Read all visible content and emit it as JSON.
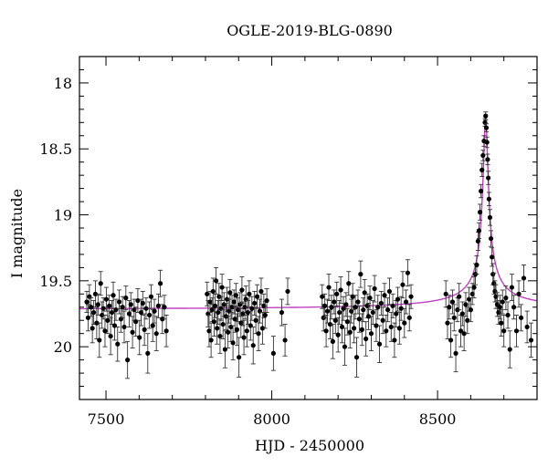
{
  "chart_data": {
    "type": "scatter",
    "title": "OGLE-2019-BLG-0890",
    "xlabel": "HJD - 2450000",
    "ylabel": "I magnitude",
    "xlim": [
      7420,
      8800
    ],
    "ylim": [
      20.4,
      17.8
    ],
    "y_inverted": true,
    "xticks": [
      7500,
      8000,
      8500
    ],
    "yticks": [
      18,
      18.5,
      19,
      19.5,
      20
    ],
    "ytick_labels": [
      "18",
      "18.5",
      "19",
      "19.5",
      "20"
    ],
    "grid": false,
    "series": [
      {
        "kind": "points_with_errorbars",
        "color": "#000000",
        "points": [
          [
            7442,
            19.66,
            0.08
          ],
          [
            7446,
            19.78,
            0.1
          ],
          [
            7450,
            19.62,
            0.09
          ],
          [
            7455,
            19.7,
            0.07
          ],
          [
            7459,
            19.86,
            0.11
          ],
          [
            7463,
            19.74,
            0.09
          ],
          [
            7468,
            19.6,
            0.1
          ],
          [
            7472,
            19.82,
            0.12
          ],
          [
            7476,
            19.68,
            0.08
          ],
          [
            7480,
            19.95,
            0.13
          ],
          [
            7484,
            19.52,
            0.09
          ],
          [
            7488,
            19.76,
            0.1
          ],
          [
            7492,
            19.71,
            0.08
          ],
          [
            7497,
            19.88,
            0.12
          ],
          [
            7501,
            19.64,
            0.09
          ],
          [
            7505,
            19.8,
            0.1
          ],
          [
            7510,
            19.69,
            0.08
          ],
          [
            7514,
            19.92,
            0.14
          ],
          [
            7518,
            19.74,
            0.09
          ],
          [
            7522,
            19.61,
            0.1
          ],
          [
            7526,
            19.84,
            0.11
          ],
          [
            7530,
            19.72,
            0.08
          ],
          [
            7535,
            19.98,
            0.13
          ],
          [
            7540,
            19.66,
            0.09
          ],
          [
            7545,
            19.79,
            0.1
          ],
          [
            7550,
            19.7,
            0.08
          ],
          [
            7555,
            19.85,
            0.12
          ],
          [
            7560,
            19.63,
            0.09
          ],
          [
            7565,
            20.1,
            0.14
          ],
          [
            7570,
            19.75,
            0.1
          ],
          [
            7575,
            19.68,
            0.09
          ],
          [
            7580,
            19.89,
            0.12
          ],
          [
            7585,
            19.72,
            0.08
          ],
          [
            7590,
            19.81,
            0.11
          ],
          [
            7596,
            19.65,
            0.09
          ],
          [
            7601,
            19.93,
            0.13
          ],
          [
            7606,
            19.74,
            0.1
          ],
          [
            7611,
            19.67,
            0.09
          ],
          [
            7616,
            19.87,
            0.12
          ],
          [
            7621,
            19.71,
            0.08
          ],
          [
            7626,
            20.05,
            0.15
          ],
          [
            7631,
            19.76,
            0.1
          ],
          [
            7636,
            19.62,
            0.09
          ],
          [
            7641,
            19.84,
            0.12
          ],
          [
            7646,
            19.73,
            0.09
          ],
          [
            7652,
            19.9,
            0.13
          ],
          [
            7658,
            19.69,
            0.09
          ],
          [
            7664,
            19.52,
            0.1
          ],
          [
            7670,
            19.79,
            0.11
          ],
          [
            7676,
            19.7,
            0.09
          ],
          [
            7682,
            19.88,
            0.12
          ],
          [
            7805,
            19.6,
            0.09
          ],
          [
            7808,
            19.75,
            0.1
          ],
          [
            7811,
            19.88,
            0.12
          ],
          [
            7814,
            19.66,
            0.08
          ],
          [
            7817,
            19.95,
            0.13
          ],
          [
            7820,
            19.72,
            0.09
          ],
          [
            7823,
            19.58,
            0.1
          ],
          [
            7826,
            19.81,
            0.11
          ],
          [
            7829,
            19.69,
            0.09
          ],
          [
            7832,
            19.5,
            0.1
          ],
          [
            7835,
            19.86,
            0.12
          ],
          [
            7838,
            19.74,
            0.09
          ],
          [
            7841,
            19.62,
            0.1
          ],
          [
            7844,
            19.92,
            0.13
          ],
          [
            7847,
            19.71,
            0.09
          ],
          [
            7850,
            19.55,
            0.1
          ],
          [
            7853,
            19.83,
            0.11
          ],
          [
            7856,
            19.68,
            0.09
          ],
          [
            7859,
            20.02,
            0.14
          ],
          [
            7862,
            19.77,
            0.1
          ],
          [
            7865,
            19.64,
            0.09
          ],
          [
            7868,
            19.89,
            0.12
          ],
          [
            7871,
            19.73,
            0.09
          ],
          [
            7874,
            19.59,
            0.1
          ],
          [
            7877,
            19.85,
            0.11
          ],
          [
            7880,
            19.7,
            0.09
          ],
          [
            7883,
            19.97,
            0.13
          ],
          [
            7886,
            19.66,
            0.09
          ],
          [
            7889,
            19.79,
            0.1
          ],
          [
            7892,
            19.61,
            0.09
          ],
          [
            7895,
            19.87,
            0.12
          ],
          [
            7898,
            19.72,
            0.09
          ],
          [
            7901,
            20.08,
            0.15
          ],
          [
            7904,
            19.68,
            0.09
          ],
          [
            7907,
            19.82,
            0.11
          ],
          [
            7910,
            19.57,
            0.1
          ],
          [
            7913,
            19.75,
            0.09
          ],
          [
            7916,
            19.93,
            0.13
          ],
          [
            7919,
            19.7,
            0.09
          ],
          [
            7922,
            19.64,
            0.1
          ],
          [
            7925,
            19.88,
            0.12
          ],
          [
            7928,
            19.74,
            0.09
          ],
          [
            7932,
            19.6,
            0.1
          ],
          [
            7936,
            19.84,
            0.11
          ],
          [
            7940,
            19.71,
            0.09
          ],
          [
            7944,
            19.99,
            0.14
          ],
          [
            7948,
            19.67,
            0.09
          ],
          [
            7952,
            19.8,
            0.1
          ],
          [
            7956,
            19.62,
            0.09
          ],
          [
            7960,
            19.9,
            0.13
          ],
          [
            7964,
            19.73,
            0.09
          ],
          [
            7968,
            19.58,
            0.1
          ],
          [
            7972,
            19.86,
            0.12
          ],
          [
            7976,
            19.69,
            0.09
          ],
          [
            7980,
            19.76,
            0.1
          ],
          [
            7985,
            19.65,
            0.09
          ],
          [
            8005,
            20.05,
            0.13
          ],
          [
            8030,
            19.74,
            0.1
          ],
          [
            8040,
            19.95,
            0.12
          ],
          [
            8048,
            19.58,
            0.1
          ],
          [
            8152,
            19.62,
            0.09
          ],
          [
            8156,
            19.78,
            0.1
          ],
          [
            8160,
            19.69,
            0.09
          ],
          [
            8164,
            19.88,
            0.12
          ],
          [
            8168,
            19.73,
            0.09
          ],
          [
            8172,
            19.55,
            0.1
          ],
          [
            8176,
            19.83,
            0.11
          ],
          [
            8180,
            19.7,
            0.09
          ],
          [
            8184,
            19.96,
            0.13
          ],
          [
            8188,
            19.66,
            0.09
          ],
          [
            8192,
            19.8,
            0.1
          ],
          [
            8196,
            19.6,
            0.09
          ],
          [
            8200,
            19.91,
            0.13
          ],
          [
            8204,
            19.74,
            0.09
          ],
          [
            8208,
            19.57,
            0.1
          ],
          [
            8212,
            19.85,
            0.12
          ],
          [
            8216,
            19.71,
            0.09
          ],
          [
            8220,
            20.0,
            0.14
          ],
          [
            8224,
            19.68,
            0.09
          ],
          [
            8228,
            19.81,
            0.1
          ],
          [
            8232,
            19.52,
            0.09
          ],
          [
            8236,
            19.89,
            0.12
          ],
          [
            8240,
            19.73,
            0.09
          ],
          [
            8244,
            19.62,
            0.1
          ],
          [
            8248,
            19.86,
            0.11
          ],
          [
            8252,
            19.7,
            0.09
          ],
          [
            8256,
            20.08,
            0.15
          ],
          [
            8260,
            19.66,
            0.09
          ],
          [
            8264,
            19.79,
            0.1
          ],
          [
            8268,
            19.45,
            0.1
          ],
          [
            8272,
            19.87,
            0.12
          ],
          [
            8276,
            19.72,
            0.09
          ],
          [
            8280,
            19.59,
            0.1
          ],
          [
            8284,
            19.94,
            0.13
          ],
          [
            8288,
            19.69,
            0.09
          ],
          [
            8292,
            19.77,
            0.1
          ],
          [
            8296,
            19.63,
            0.09
          ],
          [
            8300,
            19.9,
            0.13
          ],
          [
            8305,
            19.74,
            0.09
          ],
          [
            8310,
            19.56,
            0.1
          ],
          [
            8315,
            19.84,
            0.12
          ],
          [
            8320,
            19.7,
            0.09
          ],
          [
            8325,
            19.98,
            0.14
          ],
          [
            8330,
            19.67,
            0.09
          ],
          [
            8335,
            19.8,
            0.1
          ],
          [
            8340,
            19.61,
            0.09
          ],
          [
            8345,
            19.88,
            0.12
          ],
          [
            8350,
            19.72,
            0.09
          ],
          [
            8355,
            19.58,
            0.1
          ],
          [
            8360,
            19.85,
            0.11
          ],
          [
            8365,
            19.69,
            0.09
          ],
          [
            8370,
            19.95,
            0.13
          ],
          [
            8375,
            19.75,
            0.1
          ],
          [
            8380,
            19.64,
            0.09
          ],
          [
            8385,
            19.86,
            0.12
          ],
          [
            8390,
            19.71,
            0.09
          ],
          [
            8395,
            19.53,
            0.1
          ],
          [
            8400,
            19.82,
            0.11
          ],
          [
            8405,
            19.66,
            0.09
          ],
          [
            8410,
            19.44,
            0.1
          ],
          [
            8415,
            19.78,
            0.1
          ],
          [
            8420,
            19.62,
            0.09
          ],
          [
            8525,
            19.6,
            0.1
          ],
          [
            8530,
            19.82,
            0.12
          ],
          [
            8535,
            19.7,
            0.09
          ],
          [
            8540,
            19.95,
            0.13
          ],
          [
            8545,
            19.66,
            0.09
          ],
          [
            8550,
            19.78,
            0.1
          ],
          [
            8555,
            20.05,
            0.14
          ],
          [
            8560,
            19.72,
            0.09
          ],
          [
            8565,
            19.62,
            0.1
          ],
          [
            8570,
            19.88,
            0.12
          ],
          [
            8575,
            19.75,
            0.09
          ],
          [
            8580,
            19.9,
            0.13
          ],
          [
            8585,
            19.68,
            0.09
          ],
          [
            8590,
            19.8,
            0.1
          ],
          [
            8595,
            19.64,
            0.09
          ],
          [
            8600,
            19.72,
            0.09
          ],
          [
            8605,
            19.6,
            0.08
          ],
          [
            8610,
            19.55,
            0.08
          ],
          [
            8614,
            19.45,
            0.08
          ],
          [
            8618,
            19.38,
            0.07
          ],
          [
            8622,
            19.2,
            0.07
          ],
          [
            8625,
            19.12,
            0.06
          ],
          [
            8628,
            18.98,
            0.06
          ],
          [
            8631,
            18.82,
            0.05
          ],
          [
            8634,
            18.66,
            0.05
          ],
          [
            8637,
            18.55,
            0.04
          ],
          [
            8640,
            18.44,
            0.04
          ],
          [
            8643,
            18.3,
            0.03
          ],
          [
            8645,
            18.25,
            0.03
          ],
          [
            8647,
            18.34,
            0.03
          ],
          [
            8649,
            18.45,
            0.04
          ],
          [
            8651,
            18.58,
            0.04
          ],
          [
            8653,
            18.72,
            0.05
          ],
          [
            8655,
            18.88,
            0.05
          ],
          [
            8658,
            19.02,
            0.06
          ],
          [
            8661,
            19.18,
            0.06
          ],
          [
            8664,
            19.32,
            0.07
          ],
          [
            8667,
            19.45,
            0.08
          ],
          [
            8670,
            19.52,
            0.08
          ],
          [
            8673,
            19.58,
            0.08
          ],
          [
            8676,
            19.62,
            0.09
          ],
          [
            8680,
            19.68,
            0.09
          ],
          [
            8684,
            19.74,
            0.09
          ],
          [
            8688,
            19.7,
            0.09
          ],
          [
            8692,
            19.82,
            0.1
          ],
          [
            8696,
            19.66,
            0.09
          ],
          [
            8700,
            19.88,
            0.12
          ],
          [
            8706,
            19.63,
            0.09
          ],
          [
            8712,
            19.76,
            0.1
          ],
          [
            8718,
            20.02,
            0.14
          ],
          [
            8724,
            19.55,
            0.1
          ],
          [
            8730,
            19.7,
            0.09
          ],
          [
            8738,
            19.88,
            0.12
          ],
          [
            8745,
            19.6,
            0.1
          ],
          [
            8752,
            19.78,
            0.1
          ],
          [
            8760,
            19.48,
            0.1
          ],
          [
            8770,
            19.85,
            0.12
          ],
          [
            8782,
            19.95,
            0.13
          ]
        ]
      },
      {
        "kind": "model_curve",
        "color": "#c040c0",
        "baseline": 19.72,
        "peak_x": 8645,
        "peak_mag": 18.27,
        "width": 18,
        "x_range": [
          7420,
          8800
        ]
      }
    ]
  }
}
